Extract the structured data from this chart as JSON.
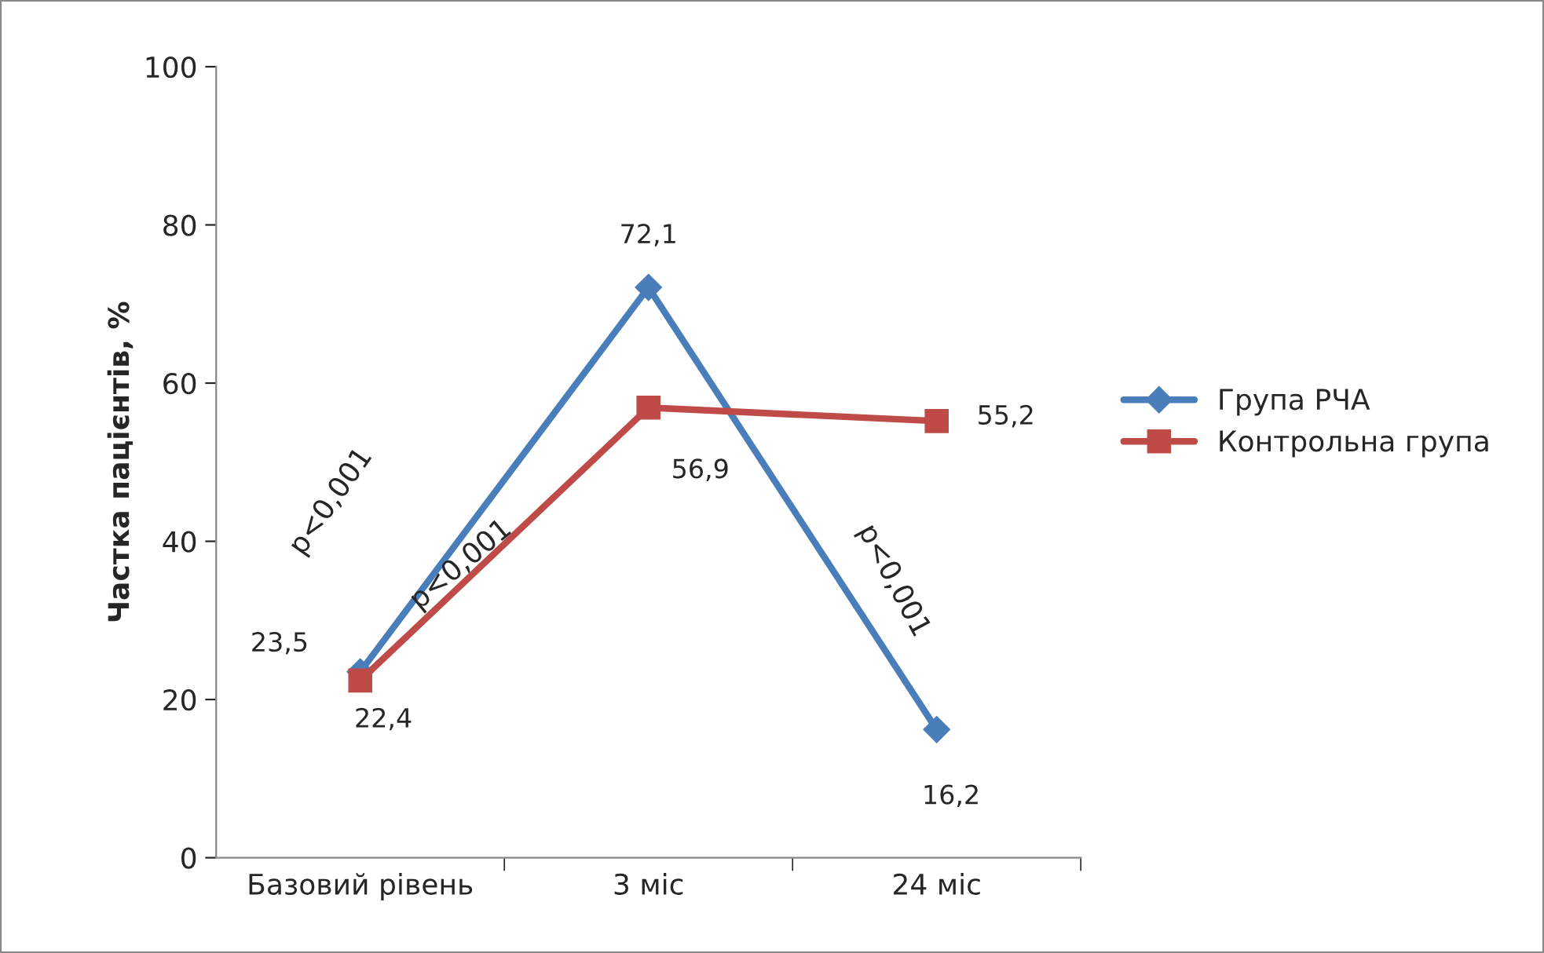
{
  "chart_data": {
    "type": "line",
    "ylabel": "Частка пацієнтів, %",
    "categories": [
      "Базовий рівень",
      "3 міс",
      "24 міс"
    ],
    "series": [
      {
        "name": "Група РЧА",
        "color": "#4a7ebb",
        "values": [
          23.5,
          72.1,
          16.2
        ],
        "value_labels": [
          "23,5",
          "72,1",
          "16,2"
        ],
        "marker": "diamond"
      },
      {
        "name": "Контрольна група",
        "color": "#be4b48",
        "values": [
          22.4,
          56.9,
          55.2
        ],
        "value_labels": [
          "22,4",
          "56,9",
          "55,2"
        ],
        "marker": "square"
      }
    ],
    "ylim": [
      0,
      100
    ],
    "yticks": [
      0,
      20,
      40,
      60,
      80,
      100
    ],
    "legend": "right",
    "grid": false,
    "line_style": "solid",
    "annotations": [
      "p<0,001",
      "p<0,001",
      "p<0,001"
    ]
  }
}
